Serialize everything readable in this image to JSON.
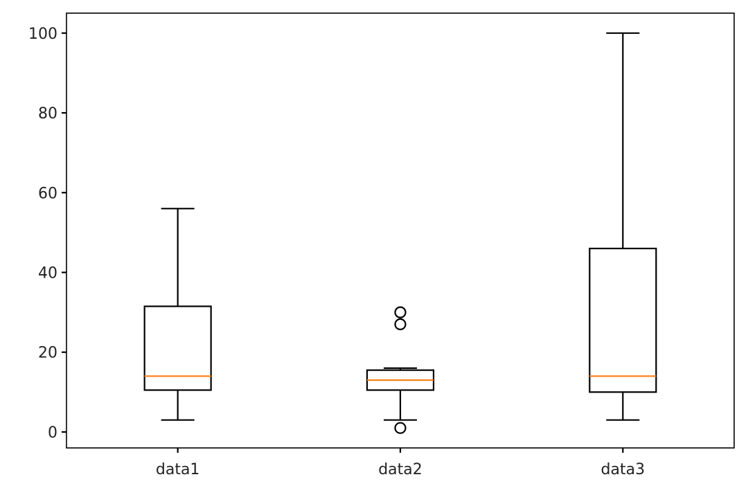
{
  "chart_data": {
    "type": "box",
    "title": "",
    "xlabel": "",
    "ylabel": "",
    "categories": [
      "data1",
      "data2",
      "data3"
    ],
    "boxes": [
      {
        "name": "data1",
        "whislo": 3,
        "q1": 10.5,
        "med": 14,
        "q3": 31.5,
        "whishi": 56,
        "fliers": []
      },
      {
        "name": "data2",
        "whislo": 3,
        "q1": 10.5,
        "med": 13,
        "q3": 15.5,
        "whishi": 16,
        "fliers": [
          1,
          27,
          30
        ]
      },
      {
        "name": "data3",
        "whislo": 3,
        "q1": 10,
        "med": 14,
        "q3": 46,
        "whishi": 100,
        "fliers": []
      }
    ],
    "ylim": [
      -4,
      105
    ],
    "yticks": [
      0,
      20,
      40,
      60,
      80,
      100
    ],
    "grid": false,
    "colors": {
      "box": "#000000",
      "median": "#ff7f0e",
      "axis": "#000000"
    }
  }
}
